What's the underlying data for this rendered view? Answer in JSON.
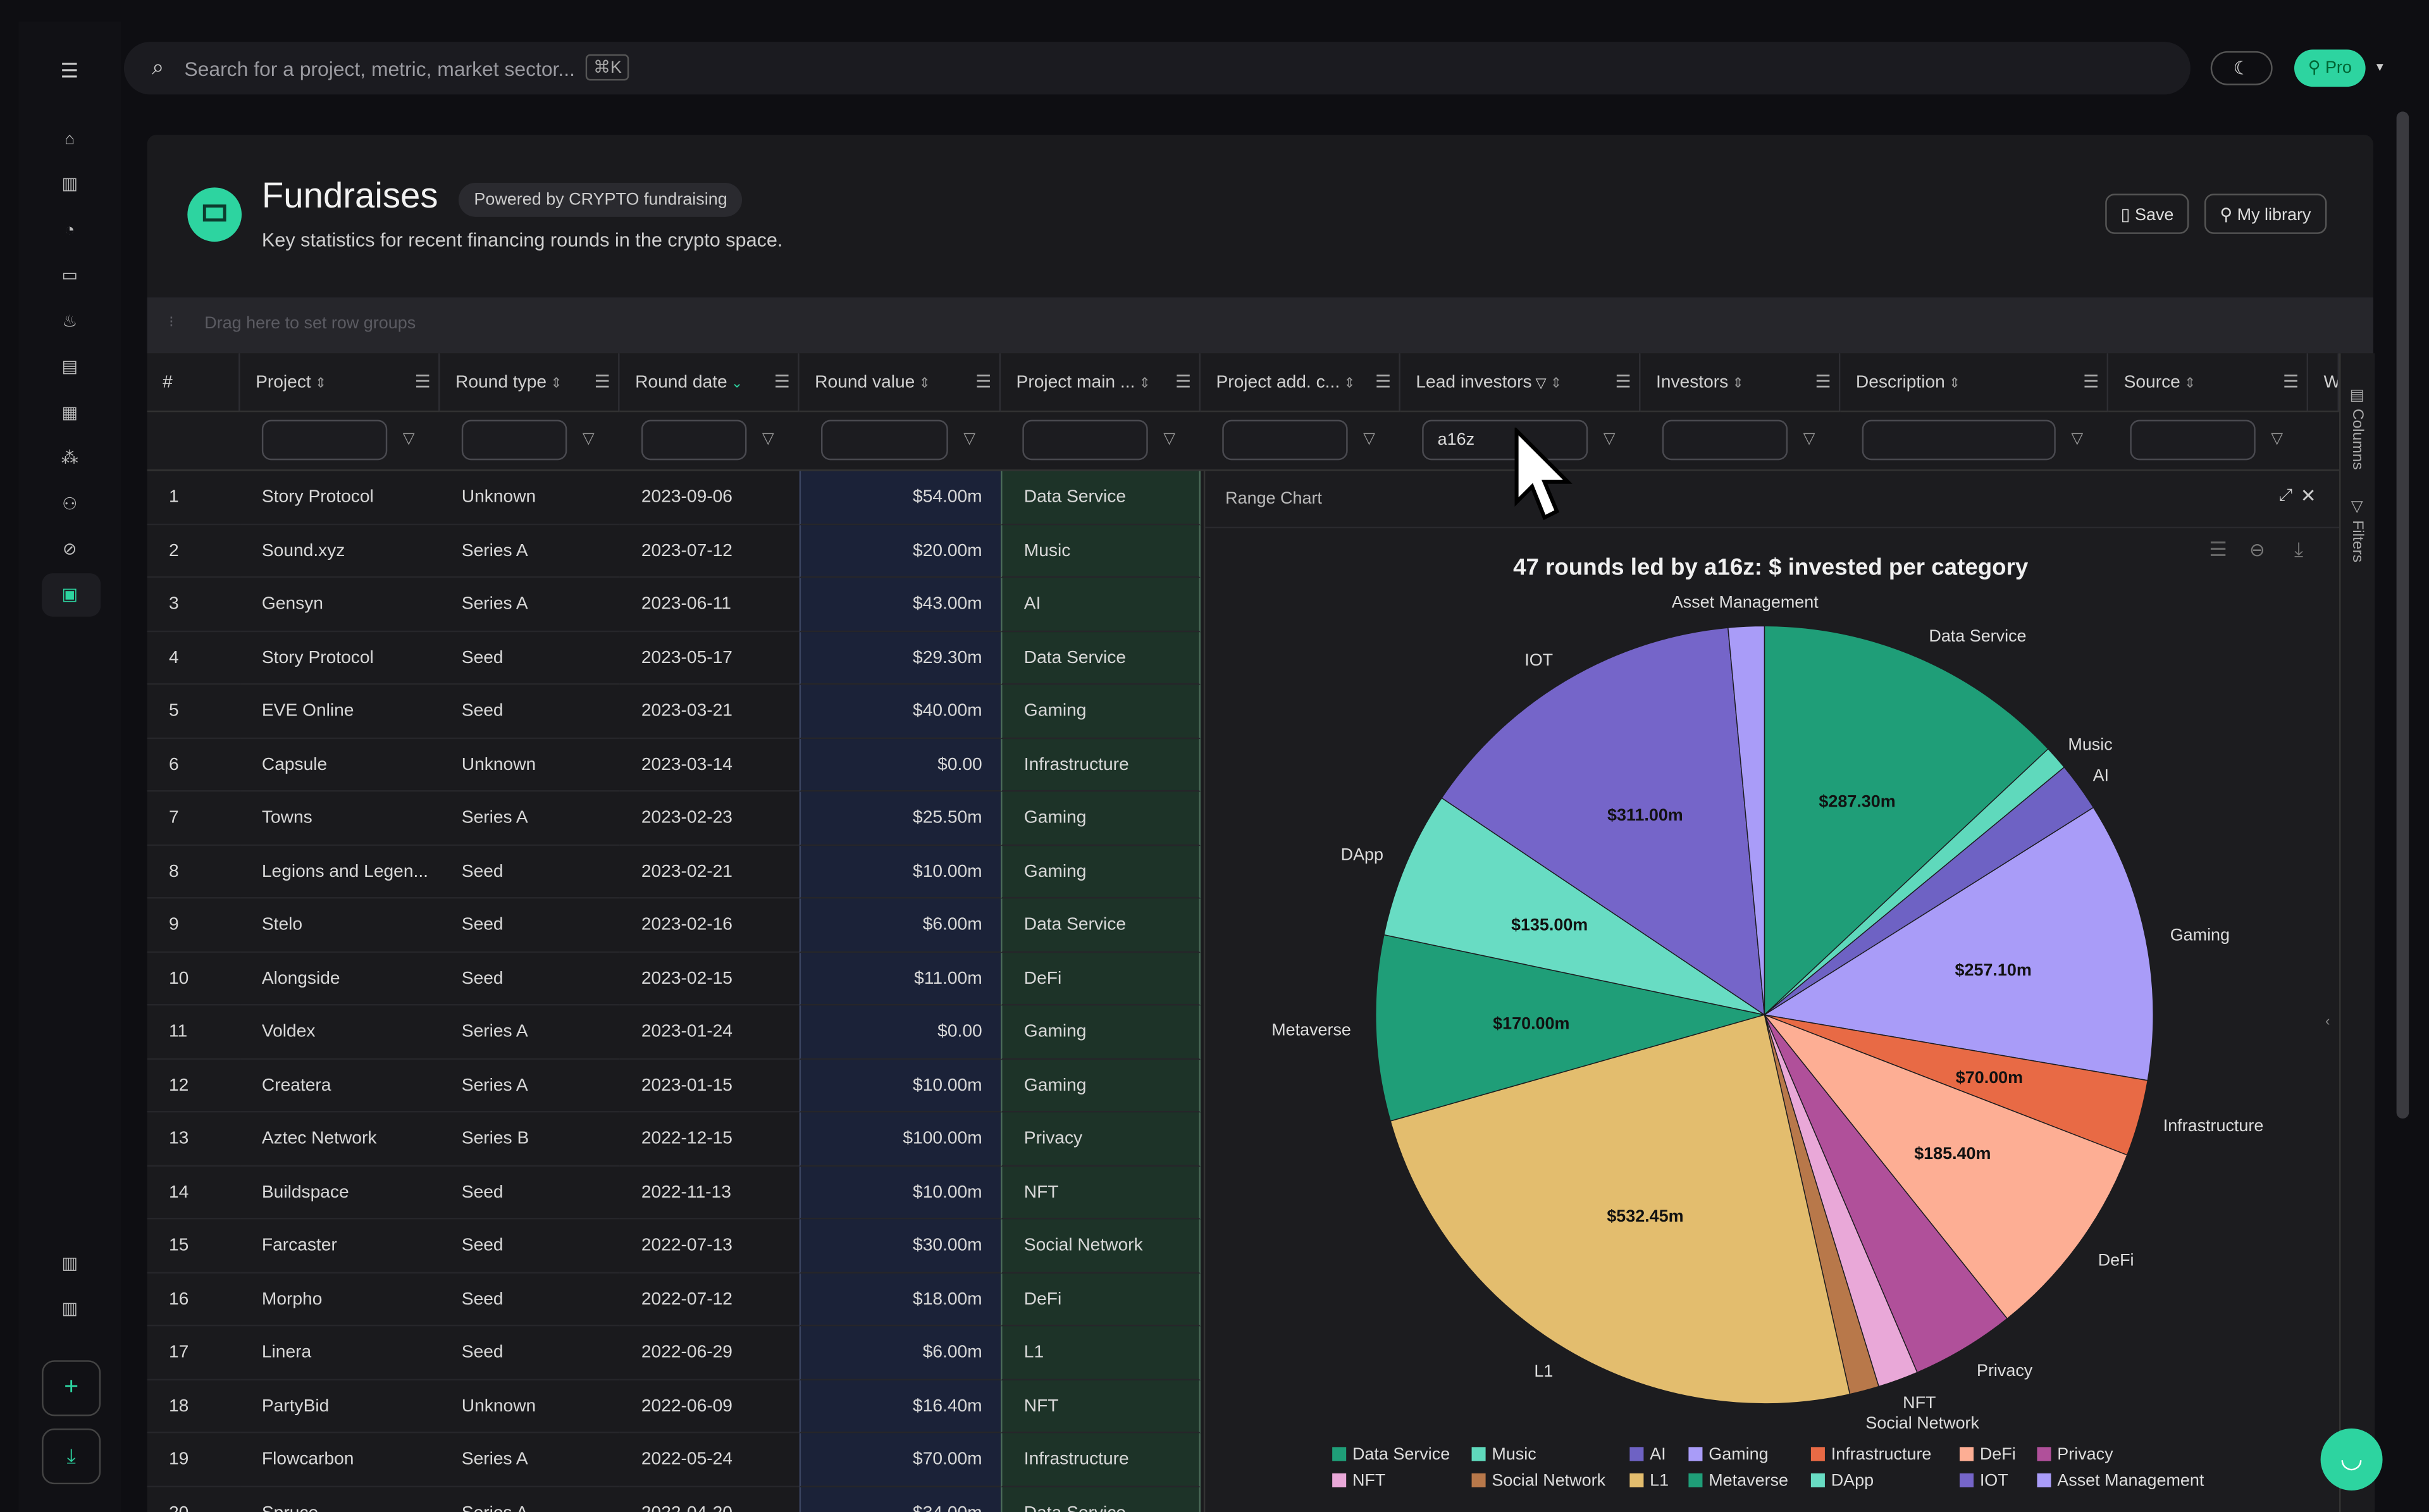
{
  "search": {
    "placeholder": "Search for a project, metric, market sector...",
    "shortcut": "⌘K"
  },
  "user": {
    "plan": "Pro"
  },
  "page": {
    "title": "Fundraises",
    "badge": "Powered by CRYPTO fundraising",
    "subtitle": "Key statistics for recent financing rounds in the crypto space.",
    "save_label": "Save",
    "library_label": "My library"
  },
  "grid": {
    "group_hint": "Drag here to set row groups",
    "columns": [
      "#",
      "Project",
      "Round type",
      "Round date",
      "Round value",
      "Project main ...",
      "Project add. c...",
      "Lead investors",
      "Investors",
      "Description",
      "Source",
      "W"
    ],
    "lead_filter": "a16z",
    "rows": [
      [
        "1",
        "Story Protocol",
        "Unknown",
        "2023-09-06",
        "$54.00m",
        "Data Service"
      ],
      [
        "2",
        "Sound.xyz",
        "Series A",
        "2023-07-12",
        "$20.00m",
        "Music"
      ],
      [
        "3",
        "Gensyn",
        "Series A",
        "2023-06-11",
        "$43.00m",
        "AI"
      ],
      [
        "4",
        "Story Protocol",
        "Seed",
        "2023-05-17",
        "$29.30m",
        "Data Service"
      ],
      [
        "5",
        "EVE Online",
        "Seed",
        "2023-03-21",
        "$40.00m",
        "Gaming"
      ],
      [
        "6",
        "Capsule",
        "Unknown",
        "2023-03-14",
        "$0.00",
        "Infrastructure"
      ],
      [
        "7",
        "Towns",
        "Series A",
        "2023-02-23",
        "$25.50m",
        "Gaming"
      ],
      [
        "8",
        "Legions and Legen...",
        "Seed",
        "2023-02-21",
        "$10.00m",
        "Gaming"
      ],
      [
        "9",
        "Stelo",
        "Seed",
        "2023-02-16",
        "$6.00m",
        "Data Service"
      ],
      [
        "10",
        "Alongside",
        "Seed",
        "2023-02-15",
        "$11.00m",
        "DeFi"
      ],
      [
        "11",
        "Voldex",
        "Series A",
        "2023-01-24",
        "$0.00",
        "Gaming"
      ],
      [
        "12",
        "Createra",
        "Series A",
        "2023-01-15",
        "$10.00m",
        "Gaming"
      ],
      [
        "13",
        "Aztec Network",
        "Series B",
        "2022-12-15",
        "$100.00m",
        "Privacy"
      ],
      [
        "14",
        "Buildspace",
        "Seed",
        "2022-11-13",
        "$10.00m",
        "NFT"
      ],
      [
        "15",
        "Farcaster",
        "Seed",
        "2022-07-13",
        "$30.00m",
        "Social Network"
      ],
      [
        "16",
        "Morpho",
        "Seed",
        "2022-07-12",
        "$18.00m",
        "DeFi"
      ],
      [
        "17",
        "Linera",
        "Seed",
        "2022-06-29",
        "$6.00m",
        "L1"
      ],
      [
        "18",
        "PartyBid",
        "Unknown",
        "2022-06-09",
        "$16.40m",
        "NFT"
      ],
      [
        "19",
        "Flowcarbon",
        "Series A",
        "2022-05-24",
        "$70.00m",
        "Infrastructure"
      ],
      [
        "20",
        "Spruce",
        "Series A",
        "2022-04-20",
        "$34.00m",
        "Data Service"
      ]
    ]
  },
  "panel": {
    "title": "Range Chart",
    "columns_label": "Columns",
    "filters_label": "Filters"
  },
  "chart_data": {
    "type": "pie",
    "title": "47 rounds led by a16z: $ invested per category",
    "legend_position": "bottom",
    "slices": [
      {
        "label": "Data Service",
        "value": 287.3,
        "display": "$287.30m",
        "color": "#1f9e78"
      },
      {
        "label": "Music",
        "value": 22,
        "display": "",
        "color": "#5fd9bc"
      },
      {
        "label": "AI",
        "value": 45,
        "display": "",
        "color": "#6e62c4"
      },
      {
        "label": "Gaming",
        "value": 257.1,
        "display": "$257.10m",
        "color": "#a99cf8"
      },
      {
        "label": "Infrastructure",
        "value": 70.0,
        "display": "$70.00m",
        "color": "#e86a45"
      },
      {
        "label": "DeFi",
        "value": 185.4,
        "display": "$185.40m",
        "color": "#fdae94"
      },
      {
        "label": "Privacy",
        "value": 95,
        "display": "",
        "color": "#b0509a"
      },
      {
        "label": "NFT",
        "value": 37,
        "display": "",
        "color": "#e9a8d8"
      },
      {
        "label": "Social Network",
        "value": 27,
        "display": "",
        "color": "#b8784a"
      },
      {
        "label": "L1",
        "value": 532.45,
        "display": "$532.45m",
        "color": "#e3bd6e"
      },
      {
        "label": "Metaverse",
        "value": 170.0,
        "display": "$170.00m",
        "color": "#1f9e78"
      },
      {
        "label": "DApp",
        "value": 135.0,
        "display": "$135.00m",
        "color": "#68dcc3"
      },
      {
        "label": "IOT",
        "value": 311.0,
        "display": "$311.00m",
        "color": "#7565c9"
      },
      {
        "label": "Asset Management",
        "value": 33,
        "display": "",
        "color": "#a99cf8"
      }
    ]
  }
}
